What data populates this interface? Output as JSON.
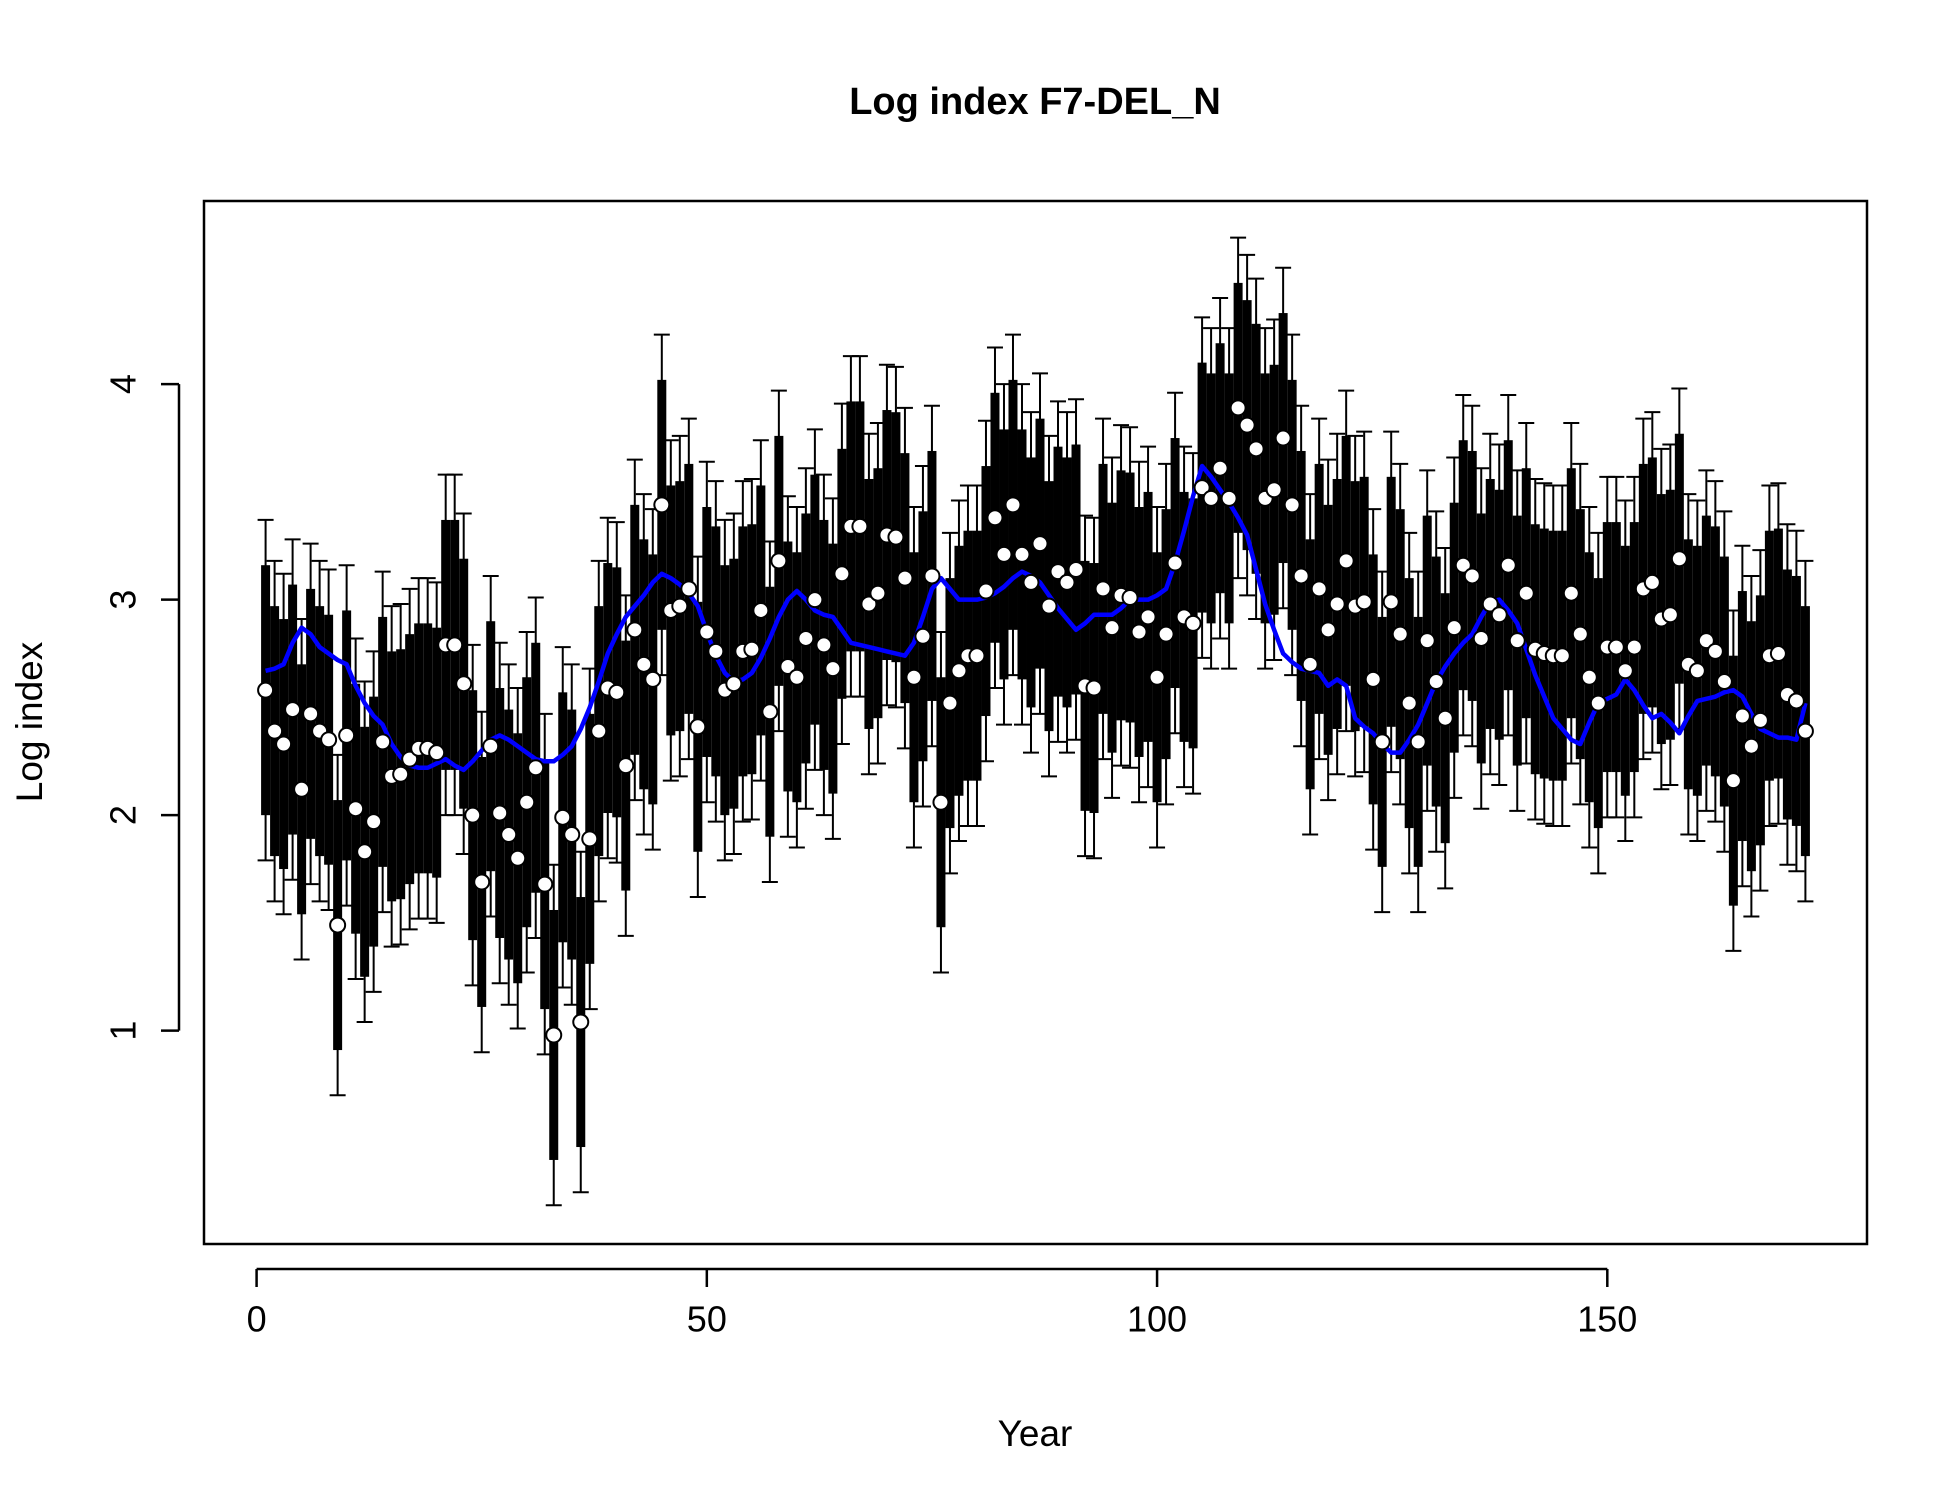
{
  "chart_data": {
    "type": "errorbar",
    "title": "Log index F7-DEL_N",
    "x_label": "Year",
    "y_label": "Log index",
    "xlim": [
      -5.84,
      178.84
    ],
    "ylim": [
      0.01,
      4.85
    ],
    "xticks": [
      0,
      50,
      100,
      150
    ],
    "yticks": [
      1,
      2,
      3,
      4
    ],
    "inner_error": 0.58,
    "outer_error": 0.79,
    "color": "#000000",
    "fit_color": "#0000ff",
    "x": [
      1,
      2,
      3,
      4,
      5,
      6,
      7,
      8,
      9,
      10,
      11,
      12,
      13,
      14,
      15,
      16,
      17,
      18,
      19,
      20,
      21,
      22,
      23,
      24,
      25,
      26,
      27,
      28,
      29,
      30,
      31,
      32,
      33,
      34,
      35,
      36,
      37,
      38,
      39,
      40,
      41,
      42,
      43,
      44,
      45,
      46,
      47,
      48,
      49,
      50,
      51,
      52,
      53,
      54,
      55,
      56,
      57,
      58,
      59,
      60,
      61,
      62,
      63,
      64,
      65,
      66,
      67,
      68,
      69,
      70,
      71,
      72,
      73,
      74,
      75,
      76,
      77,
      78,
      79,
      80,
      81,
      82,
      83,
      84,
      85,
      86,
      87,
      88,
      89,
      90,
      91,
      92,
      93,
      94,
      95,
      96,
      97,
      98,
      99,
      100,
      101,
      102,
      103,
      104,
      105,
      106,
      107,
      108,
      109,
      110,
      111,
      112,
      113,
      114,
      115,
      116,
      117,
      118,
      119,
      120,
      121,
      122,
      123,
      124,
      125,
      126,
      127,
      128,
      129,
      130,
      131,
      132,
      133,
      134,
      135,
      136,
      137,
      138,
      139,
      140,
      141,
      142,
      143,
      144,
      145,
      146,
      147,
      148,
      149,
      150,
      151,
      152,
      153,
      154,
      155,
      156,
      157,
      158,
      159,
      160,
      161,
      162,
      163,
      164,
      165,
      166,
      167,
      168,
      169,
      170,
      171,
      172
    ],
    "values": [
      2.58,
      2.39,
      2.33,
      2.49,
      2.12,
      2.47,
      2.39,
      2.35,
      1.49,
      2.37,
      2.03,
      1.83,
      1.97,
      2.34,
      2.18,
      2.19,
      2.26,
      2.31,
      2.31,
      2.29,
      2.79,
      2.79,
      2.61,
      2.0,
      1.69,
      2.32,
      2.01,
      1.91,
      1.8,
      2.06,
      2.22,
      1.68,
      0.98,
      1.99,
      1.91,
      1.04,
      1.89,
      2.39,
      2.59,
      2.57,
      2.23,
      2.86,
      2.7,
      2.63,
      3.44,
      2.95,
      2.97,
      3.05,
      2.41,
      2.85,
      2.76,
      2.58,
      2.61,
      2.76,
      2.77,
      2.95,
      2.48,
      3.18,
      2.69,
      2.64,
      2.82,
      3.0,
      2.79,
      2.68,
      3.12,
      3.34,
      3.34,
      2.98,
      3.03,
      3.3,
      3.29,
      3.1,
      2.64,
      2.83,
      3.11,
      2.06,
      2.52,
      2.67,
      2.74,
      2.74,
      3.04,
      3.38,
      3.21,
      3.44,
      3.21,
      3.08,
      3.26,
      2.97,
      3.13,
      3.08,
      3.14,
      2.6,
      2.59,
      3.05,
      2.87,
      3.02,
      3.01,
      2.85,
      2.92,
      2.64,
      2.84,
      3.17,
      2.92,
      2.89,
      3.52,
      3.47,
      3.61,
      3.47,
      3.89,
      3.81,
      3.7,
      3.47,
      3.51,
      3.75,
      3.44,
      3.11,
      2.7,
      3.05,
      2.86,
      2.98,
      3.18,
      2.97,
      2.99,
      2.63,
      2.34,
      2.99,
      2.84,
      2.52,
      2.34,
      2.81,
      2.62,
      2.45,
      2.87,
      3.16,
      3.11,
      2.82,
      2.98,
      2.93,
      3.16,
      2.81,
      3.03,
      2.77,
      2.75,
      2.74,
      2.74,
      3.03,
      2.84,
      2.64,
      2.52,
      2.78,
      2.78,
      2.67,
      2.78,
      3.05,
      3.08,
      2.91,
      2.93,
      3.19,
      2.7,
      2.67,
      2.81,
      2.76,
      2.62,
      2.16,
      2.46,
      2.32,
      2.44,
      2.74,
      2.75,
      2.56,
      2.53,
      2.39
    ],
    "fit_values": [
      2.67,
      2.68,
      2.7,
      2.8,
      2.87,
      2.84,
      2.78,
      2.75,
      2.72,
      2.7,
      2.6,
      2.52,
      2.46,
      2.42,
      2.33,
      2.27,
      2.23,
      2.22,
      2.22,
      2.24,
      2.26,
      2.23,
      2.21,
      2.25,
      2.3,
      2.35,
      2.37,
      2.35,
      2.32,
      2.29,
      2.26,
      2.25,
      2.25,
      2.28,
      2.32,
      2.4,
      2.5,
      2.62,
      2.75,
      2.84,
      2.92,
      2.97,
      3.02,
      3.08,
      3.12,
      3.1,
      3.07,
      3.03,
      2.97,
      2.85,
      2.74,
      2.66,
      2.62,
      2.63,
      2.66,
      2.73,
      2.82,
      2.92,
      3.0,
      3.04,
      3.0,
      2.95,
      2.93,
      2.92,
      2.86,
      2.8,
      2.79,
      2.78,
      2.77,
      2.76,
      2.75,
      2.74,
      2.8,
      2.92,
      3.05,
      3.1,
      3.05,
      3.0,
      3.0,
      3.0,
      3.01,
      3.03,
      3.06,
      3.1,
      3.13,
      3.11,
      3.08,
      3.02,
      2.96,
      2.91,
      2.86,
      2.89,
      2.93,
      2.93,
      2.93,
      2.96,
      3.0,
      3.0,
      3.0,
      3.02,
      3.05,
      3.17,
      3.32,
      3.48,
      3.62,
      3.57,
      3.51,
      3.45,
      3.38,
      3.3,
      3.14,
      2.98,
      2.86,
      2.75,
      2.71,
      2.68,
      2.67,
      2.66,
      2.6,
      2.63,
      2.6,
      2.45,
      2.41,
      2.38,
      2.33,
      2.29,
      2.29,
      2.35,
      2.42,
      2.52,
      2.62,
      2.69,
      2.75,
      2.8,
      2.84,
      2.92,
      2.99,
      3.0,
      2.95,
      2.89,
      2.77,
      2.65,
      2.55,
      2.45,
      2.4,
      2.35,
      2.33,
      2.43,
      2.52,
      2.54,
      2.56,
      2.63,
      2.58,
      2.51,
      2.45,
      2.47,
      2.43,
      2.38,
      2.46,
      2.53,
      2.54,
      2.55,
      2.57,
      2.58,
      2.55,
      2.47,
      2.4,
      2.38,
      2.36,
      2.36,
      2.35,
      2.52
    ]
  }
}
